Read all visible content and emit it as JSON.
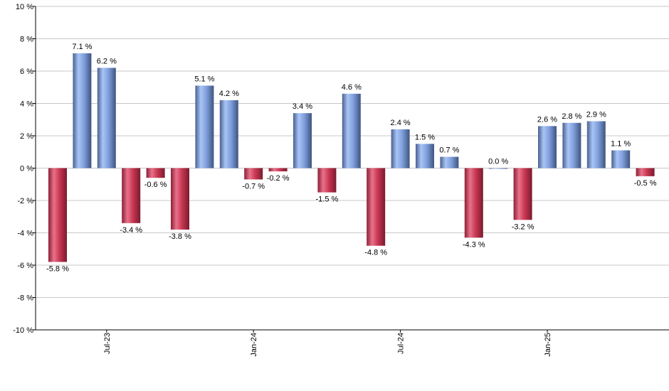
{
  "chart_data": {
    "type": "bar",
    "categories": [
      null,
      null,
      "Jul-23",
      null,
      null,
      null,
      null,
      null,
      "Jan-24",
      null,
      null,
      null,
      null,
      null,
      "Jul-24",
      null,
      null,
      null,
      null,
      null,
      "Jan-25",
      null,
      null,
      null,
      null
    ],
    "values": [
      -5.8,
      7.1,
      6.2,
      -3.4,
      -0.6,
      -3.8,
      5.1,
      4.2,
      -0.7,
      -0.2,
      3.4,
      -1.5,
      4.6,
      -4.8,
      2.4,
      1.5,
      0.7,
      -4.3,
      0.0,
      -3.2,
      2.6,
      2.8,
      2.9,
      1.1,
      -0.5
    ],
    "value_labels": [
      "-5.8 %",
      "7.1 %",
      "6.2 %",
      "-3.4 %",
      "-0.6 %",
      "-3.8 %",
      "5.1 %",
      "4.2 %",
      "-0.7 %",
      "-0.2 %",
      "3.4 %",
      "-1.5 %",
      "4.6 %",
      "-4.8 %",
      "2.4 %",
      "1.5 %",
      "0.7 %",
      "-4.3 %",
      "0.0 %",
      "-3.2 %",
      "2.6 %",
      "2.8 %",
      "2.9 %",
      "1.1 %",
      "-0.5 %"
    ],
    "colors": {
      "positive": [
        "#4a6090",
        "#a9c5f6",
        "#7f9fdc",
        "#3f5480"
      ],
      "negative": [
        "#8c2036",
        "#e8728a",
        "#c93752",
        "#7a1a2e"
      ]
    },
    "ylim": [
      -10,
      10
    ],
    "yticks": [
      {
        "value": -10,
        "label": "-10 %"
      },
      {
        "value": -8,
        "label": "-8 %"
      },
      {
        "value": -6,
        "label": "-6 %"
      },
      {
        "value": -4,
        "label": "-4 %"
      },
      {
        "value": -2,
        "label": "-2 %"
      },
      {
        "value": 0,
        "label": "0 %"
      },
      {
        "value": 2,
        "label": "2 %"
      },
      {
        "value": 4,
        "label": "4 %"
      },
      {
        "value": 6,
        "label": "6 %"
      },
      {
        "value": 8,
        "label": "8 %"
      },
      {
        "value": 10,
        "label": "10 %"
      }
    ],
    "grid": true
  }
}
